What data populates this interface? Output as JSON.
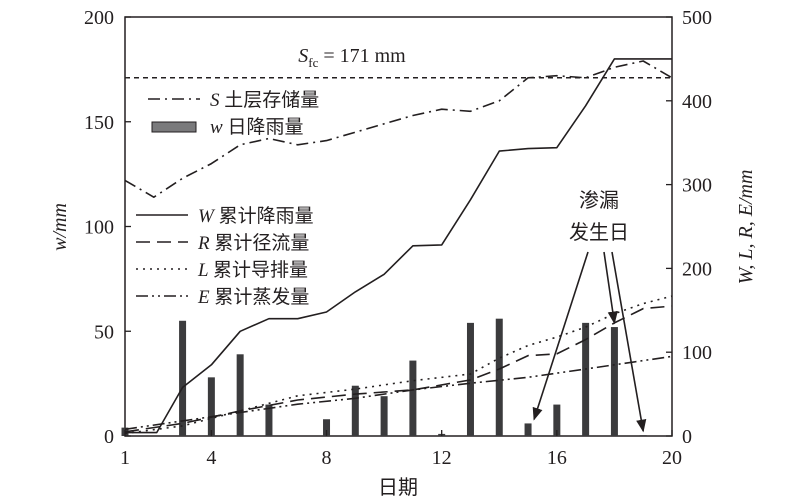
{
  "chart_data": {
    "type": "bar+line",
    "xlabel": "日期",
    "ylabel_left": "w/mm",
    "ylabel_right": "W, L, R, E/mm",
    "xlim": [
      1,
      20
    ],
    "ylim_left": [
      0,
      200
    ],
    "ylim_right": [
      0,
      500
    ],
    "xticks": [
      1,
      4,
      8,
      12,
      16,
      20
    ],
    "yticks_left": [
      0,
      50,
      100,
      150,
      200
    ],
    "yticks_right": [
      0,
      100,
      200,
      300,
      400,
      500
    ],
    "reference_line": {
      "value": 171,
      "axis": "left",
      "label_main": "S",
      "label_sub": "fc",
      "label_rest": " = 171 mm"
    },
    "annotation": {
      "line1": "渗漏",
      "line2": "发生日",
      "target_days": [
        15,
        18,
        19
      ]
    },
    "legend": [
      {
        "sym": "S",
        "text": "土层存储量",
        "style": "dashdot"
      },
      {
        "sym": "w",
        "text": "日降雨量",
        "style": "bar"
      },
      {
        "sym": "W",
        "text": "累计降雨量",
        "style": "solid"
      },
      {
        "sym": "R",
        "text": "累计径流量",
        "style": "dashed"
      },
      {
        "sym": "L",
        "text": "累计导排量",
        "style": "dotted"
      },
      {
        "sym": "E",
        "text": "累计蒸发量",
        "style": "dashdotdot"
      }
    ],
    "bars": {
      "name": "w",
      "axis": "left",
      "x": [
        1,
        3,
        4,
        5,
        6,
        8,
        9,
        10,
        11,
        12,
        13,
        14,
        15,
        16,
        17,
        18,
        19
      ],
      "values": [
        4,
        55,
        28,
        39,
        15,
        8,
        24,
        19,
        36,
        1,
        54,
        56,
        6,
        15,
        54,
        52,
        0.4
      ]
    },
    "series": [
      {
        "name": "S",
        "axis": "left",
        "style": "dashdot",
        "x": [
          1,
          2,
          3,
          4,
          5,
          6,
          7,
          8,
          9,
          10,
          11,
          12,
          13,
          14,
          15,
          16,
          17,
          18,
          19,
          20
        ],
        "values": [
          122,
          114,
          123,
          130,
          139,
          142,
          139,
          141,
          145,
          149,
          153,
          156,
          155,
          160,
          171,
          172,
          171,
          176,
          179,
          171
        ]
      },
      {
        "name": "W",
        "axis": "right",
        "style": "solid",
        "x": [
          1,
          2.1,
          3,
          4,
          5,
          6,
          7,
          8,
          9,
          10,
          11,
          12,
          13,
          14,
          15,
          16,
          17,
          18,
          19,
          20
        ],
        "values": [
          4,
          4,
          58,
          85,
          125,
          140,
          140,
          148,
          172,
          193,
          227,
          228,
          282,
          340,
          343,
          344,
          394,
          450,
          450,
          450
        ]
      },
      {
        "name": "R",
        "axis": "right",
        "style": "dashed",
        "x": [
          1,
          3,
          5,
          7,
          9,
          11,
          13,
          14,
          15,
          16,
          17,
          18,
          19,
          20
        ],
        "values": [
          5,
          15,
          30,
          43,
          50,
          55,
          67,
          80,
          96,
          98,
          115,
          135,
          152,
          155
        ]
      },
      {
        "name": "L",
        "axis": "right",
        "style": "dotted",
        "x": [
          1,
          3,
          5,
          7,
          9,
          11,
          13,
          14,
          15,
          16,
          17,
          18,
          19,
          20
        ],
        "values": [
          3,
          12,
          30,
          48,
          56,
          66,
          74,
          93,
          108,
          118,
          130,
          146,
          158,
          167
        ]
      },
      {
        "name": "E",
        "axis": "right",
        "style": "dashdotdot",
        "x": [
          1,
          3,
          5,
          7,
          9,
          11,
          13,
          15,
          17,
          19,
          20
        ],
        "values": [
          8,
          18,
          28,
          38,
          45,
          55,
          63,
          70,
          80,
          90,
          95
        ]
      }
    ]
  }
}
